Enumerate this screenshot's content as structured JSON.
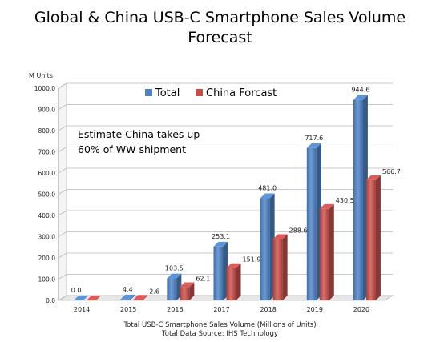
{
  "chart_data": {
    "type": "bar",
    "title_line1": "Global & China USB-C Smartphone Sales Volume",
    "title_line2": "Forecast",
    "ylabel": "M Units",
    "ylim": [
      0,
      1000
    ],
    "ytick_values": [
      0,
      100,
      200,
      300,
      400,
      500,
      600,
      700,
      800,
      900,
      1000
    ],
    "ytick_labels": [
      "0.0",
      "100.0",
      "200.0",
      "300.0",
      "400.0",
      "500.0",
      "600.0",
      "700.0",
      "800.0",
      "900.0",
      "1000.0"
    ],
    "categories": [
      "2014",
      "2015",
      "2016",
      "2017",
      "2018",
      "2019",
      "2020"
    ],
    "series": [
      {
        "name": "Total",
        "color": "#4F81BD",
        "values": [
          0.0,
          4.4,
          103.5,
          253.1,
          481.0,
          717.6,
          944.6
        ],
        "labels": [
          "0.0",
          "4.4",
          "103.5",
          "253.1",
          "481.0",
          "717.6",
          "944.6"
        ]
      },
      {
        "name": "China Forcast",
        "color": "#C0504D",
        "values": [
          0,
          2.6,
          62.1,
          151.9,
          288.6,
          430.5,
          566.7
        ],
        "labels": [
          "",
          "2.6",
          "62.1",
          "151.9",
          "288.6",
          "430.5",
          "566.7"
        ]
      }
    ],
    "annotation_line1": "Estimate China takes up",
    "annotation_line2": "60% of WW shipment",
    "legend_placement": "top",
    "grid": true
  },
  "footer": {
    "line1": "Total USB-C Smartphone Sales Volume (Millions of Units)",
    "line2": "Total Data Source: IHS Technology"
  }
}
